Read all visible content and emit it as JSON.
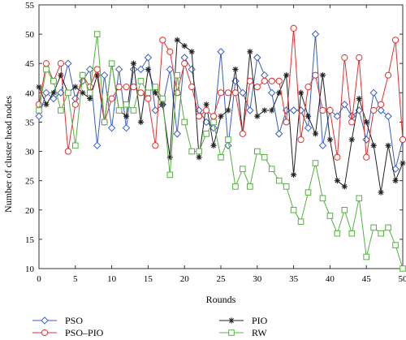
{
  "chart_data": {
    "type": "line",
    "xlabel": "Rounds",
    "ylabel": "Number of cluster head nodes",
    "xlim": [
      0,
      50
    ],
    "ylim": [
      10,
      55
    ],
    "xticks": [
      0,
      5,
      10,
      15,
      20,
      25,
      30,
      35,
      40,
      45,
      50
    ],
    "yticks": [
      10,
      15,
      20,
      25,
      30,
      35,
      40,
      45,
      50,
      55
    ],
    "grid": false,
    "legend_position": "bottom",
    "x": [
      0,
      1,
      2,
      3,
      4,
      5,
      6,
      7,
      8,
      9,
      10,
      11,
      12,
      13,
      14,
      15,
      16,
      17,
      18,
      19,
      20,
      21,
      22,
      23,
      24,
      25,
      26,
      27,
      28,
      29,
      30,
      31,
      32,
      33,
      34,
      35,
      36,
      37,
      38,
      39,
      40,
      41,
      42,
      43,
      44,
      45,
      46,
      47,
      48,
      49,
      50
    ],
    "series": [
      {
        "name": "PSO",
        "color": "#3b5fc0",
        "marker": "diamond",
        "values": [
          36,
          40,
          39,
          40,
          45,
          39,
          42,
          44,
          31,
          43,
          34,
          44,
          34,
          44,
          44,
          46,
          37,
          38,
          44,
          33,
          46,
          44,
          37,
          35,
          34,
          47,
          31,
          42,
          40,
          37,
          46,
          43,
          40,
          33,
          37,
          37,
          37,
          34,
          50,
          31,
          37,
          36,
          38,
          36,
          37,
          32,
          40,
          37,
          36,
          27,
          32
        ]
      },
      {
        "name": "PIO",
        "color": "#222222",
        "marker": "asterisk",
        "values": [
          41,
          38,
          40,
          43,
          40,
          41,
          40,
          39,
          43,
          35,
          45,
          37,
          36,
          45,
          35,
          44,
          40,
          38,
          29,
          49,
          48,
          47,
          29,
          38,
          31,
          36,
          37,
          44,
          33,
          47,
          36,
          37,
          37,
          40,
          43,
          26,
          40,
          36,
          33,
          43,
          32,
          25,
          24,
          32,
          39,
          35,
          31,
          23,
          31,
          25,
          28
        ]
      },
      {
        "name": "PSO–PIO",
        "color": "#e03030",
        "marker": "circle",
        "values": [
          38,
          45,
          42,
          45,
          30,
          38,
          43,
          41,
          44,
          35,
          39,
          41,
          41,
          41,
          40,
          39,
          31,
          49,
          47,
          40,
          45,
          41,
          36,
          37,
          36,
          40,
          40,
          40,
          33,
          42,
          41,
          42,
          42,
          42,
          35,
          51,
          32,
          41,
          43,
          37,
          37,
          29,
          46,
          35,
          46,
          29,
          37,
          38,
          43,
          49,
          32
        ]
      },
      {
        "name": "RW",
        "color": "#55b040",
        "marker": "square",
        "values": [
          37,
          44,
          42,
          37,
          40,
          31,
          43,
          40,
          50,
          35,
          45,
          37,
          38,
          37,
          42,
          40,
          41,
          39,
          26,
          43,
          35,
          30,
          30,
          33,
          35,
          29,
          32,
          24,
          27,
          24,
          30,
          29,
          27,
          25,
          24,
          20,
          18,
          23,
          28,
          22,
          19,
          16,
          20,
          16,
          22,
          12,
          17,
          16,
          17,
          14,
          10
        ]
      }
    ]
  }
}
